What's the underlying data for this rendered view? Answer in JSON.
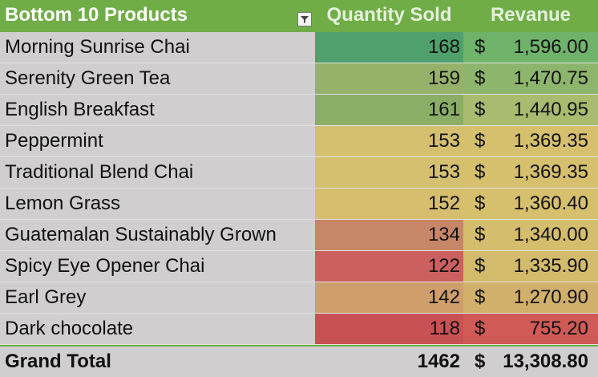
{
  "header": {
    "row_label": "Bottom 10 Products",
    "quantity_col": "Quantity Sold",
    "revenue_col": "Revanue"
  },
  "rows": [
    {
      "product": "Morning Sunrise Chai",
      "qty": "168",
      "revenue": "1,596.00",
      "qty_color": "#4fa06a",
      "rev_color": "#6fb36b"
    },
    {
      "product": "Serenity Green Tea",
      "qty": "159",
      "revenue": "1,470.75",
      "qty_color": "#96b26a",
      "rev_color": "#8db56c"
    },
    {
      "product": "English Breakfast",
      "qty": "161",
      "revenue": "1,440.95",
      "qty_color": "#8aae66",
      "rev_color": "#a8bb6e"
    },
    {
      "product": "Peppermint",
      "qty": "153",
      "revenue": "1,369.35",
      "qty_color": "#d4c06e",
      "rev_color": "#d6c06e"
    },
    {
      "product": "Traditional Blend Chai",
      "qty": "153",
      "revenue": "1,369.35",
      "qty_color": "#d4c06e",
      "rev_color": "#d6c06e"
    },
    {
      "product": "Lemon Grass",
      "qty": "152",
      "revenue": "1,360.40",
      "qty_color": "#d6be6e",
      "rev_color": "#d6c06e"
    },
    {
      "product": "Guatemalan Sustainably Grown",
      "qty": "134",
      "revenue": "1,340.00",
      "qty_color": "#c78667",
      "rev_color": "#d4bd6c"
    },
    {
      "product": "Spicy Eye Opener Chai",
      "qty": "122",
      "revenue": "1,335.90",
      "qty_color": "#cc605e",
      "rev_color": "#d3bb6b"
    },
    {
      "product": "Earl Grey",
      "qty": "142",
      "revenue": "1,270.90",
      "qty_color": "#cf9e6b",
      "rev_color": "#d0b06a"
    },
    {
      "product": "Dark chocolate",
      "qty": "118",
      "revenue": "755.20",
      "qty_color": "#c85253",
      "rev_color": "#cf5a56"
    }
  ],
  "currency_symbol": "$",
  "total": {
    "label": "Grand Total",
    "qty": "1462",
    "revenue": "13,308.80"
  },
  "colors": {
    "header_green": "#70ad47",
    "row_label_bg": "#d0cece"
  },
  "icons": {
    "filter": "filter-sort-icon"
  }
}
